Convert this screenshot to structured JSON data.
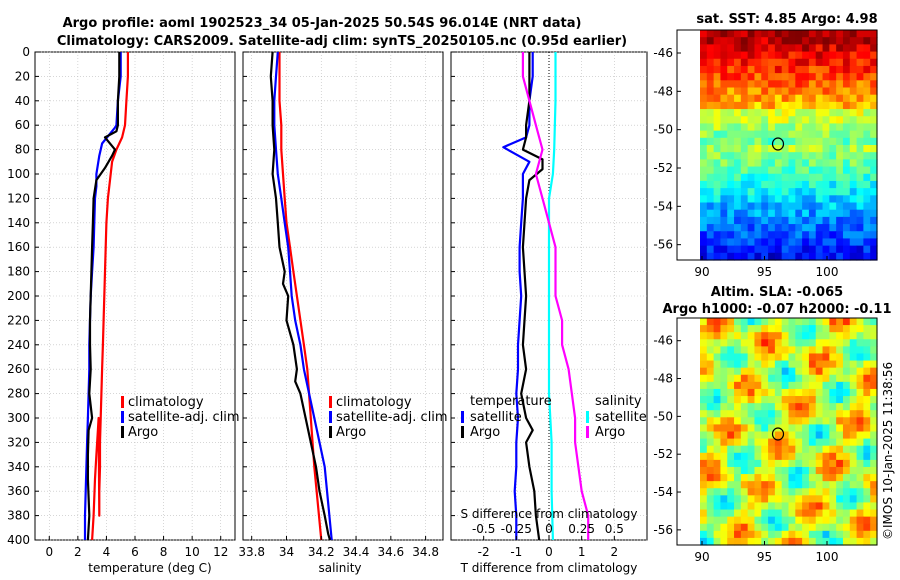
{
  "title": {
    "line1": "Argo profile: aoml 1902523_34 05-Jan-2025 50.54S 96.014E (NRT data)",
    "line2": "Climatology: CARS2009. Satellite-adj clim: synTS_20250105.nc (0.95d earlier)"
  },
  "credit": "©IMOS 10-Jan-2025 11:38:56",
  "colors": {
    "climatology": "#ff0000",
    "satellite": "#0000ff",
    "argo": "#000000",
    "sat_salinity": "#00ffff",
    "argo_salinity": "#ff00ff"
  },
  "chart_data": [
    {
      "id": "temperature",
      "type": "line",
      "xlabel": "temperature (deg C)",
      "ylabel": "",
      "xlim": [
        -1,
        13
      ],
      "ylim": [
        400,
        0
      ],
      "xticks": [
        "0",
        "2",
        "4",
        "6",
        "8",
        "10",
        "12"
      ],
      "yticks": [
        "0",
        "20",
        "40",
        "60",
        "80",
        "100",
        "120",
        "140",
        "160",
        "180",
        "200",
        "220",
        "240",
        "260",
        "280",
        "300",
        "320",
        "340",
        "360",
        "380",
        "400"
      ],
      "grid": true,
      "legend": {
        "location": "lower-right",
        "entries": [
          "climatology",
          "satellite-adj. clim",
          "Argo"
        ]
      },
      "series": [
        {
          "name": "climatology",
          "x": [
            5.5,
            5.5,
            5.4,
            5.3,
            5.1,
            4.7,
            4.4,
            4.3,
            4.2,
            4.1,
            4.0,
            3.95,
            3.9,
            3.85,
            3.8,
            3.75,
            3.7,
            3.65,
            3.6,
            3.55,
            3.55,
            3.5,
            3.5,
            3.45,
            3.4,
            3.3,
            3.2,
            3.1,
            3.0
          ],
          "y": [
            0,
            20,
            40,
            60,
            70,
            80,
            90,
            100,
            110,
            120,
            140,
            160,
            180,
            200,
            220,
            240,
            260,
            280,
            300,
            320,
            340,
            360,
            380,
            300,
            310,
            330,
            350,
            380,
            400
          ]
        },
        {
          "name": "satellite-adj. clim",
          "x": [
            5.0,
            5.0,
            4.8,
            4.7,
            4.6,
            3.7,
            3.5,
            3.3,
            3.3,
            3.2,
            3.15,
            3.1,
            3.0,
            2.9,
            2.85,
            2.8,
            2.8,
            2.75,
            2.7,
            2.65,
            2.6,
            2.55,
            2.5,
            2.5
          ],
          "y": [
            0,
            20,
            40,
            60,
            62,
            75,
            85,
            100,
            110,
            120,
            140,
            160,
            180,
            200,
            220,
            240,
            260,
            280,
            300,
            320,
            340,
            360,
            380,
            400
          ]
        },
        {
          "name": "Argo",
          "x": [
            4.9,
            4.9,
            4.8,
            4.8,
            4.7,
            3.9,
            4.6,
            4.4,
            3.9,
            3.3,
            3.1,
            3.05,
            3.0,
            2.95,
            2.9,
            2.85,
            2.85,
            2.9,
            2.8,
            2.9,
            3.0,
            2.75,
            2.7,
            2.7,
            2.8,
            2.7
          ],
          "y": [
            0,
            20,
            40,
            60,
            65,
            70,
            80,
            85,
            95,
            105,
            120,
            140,
            160,
            180,
            200,
            220,
            240,
            260,
            280,
            290,
            300,
            310,
            330,
            350,
            380,
            400
          ]
        }
      ]
    },
    {
      "id": "salinity",
      "type": "line",
      "xlabel": "salinity",
      "xlim": [
        33.75,
        34.9
      ],
      "ylim": [
        400,
        0
      ],
      "xticks": [
        "33.8",
        "34",
        "34.2",
        "34.4",
        "34.6",
        "34.8"
      ],
      "grid": true,
      "legend": {
        "location": "lower-right",
        "entries": [
          "climatology",
          "satellite-adj. clim",
          "Argo"
        ]
      },
      "series": [
        {
          "name": "climatology",
          "x": [
            33.96,
            33.96,
            33.96,
            33.97,
            33.97,
            33.98,
            33.99,
            34.0,
            34.02,
            34.04,
            34.06,
            34.08,
            34.1,
            34.12,
            34.14,
            34.16,
            34.18,
            34.2
          ],
          "y": [
            0,
            20,
            40,
            60,
            80,
            100,
            120,
            140,
            160,
            180,
            200,
            220,
            240,
            260,
            300,
            340,
            370,
            400
          ]
        },
        {
          "name": "satellite-adj. clim",
          "x": [
            33.95,
            33.94,
            33.93,
            33.93,
            33.94,
            33.95,
            33.97,
            33.99,
            34.01,
            34.02,
            34.03,
            34.05,
            34.08,
            34.1,
            34.13,
            34.16,
            34.19,
            34.22,
            34.24,
            34.26
          ],
          "y": [
            0,
            20,
            40,
            60,
            80,
            100,
            120,
            140,
            160,
            180,
            200,
            220,
            240,
            260,
            280,
            300,
            320,
            340,
            370,
            400
          ]
        },
        {
          "name": "Argo",
          "x": [
            33.92,
            33.91,
            33.92,
            33.92,
            33.93,
            33.92,
            33.94,
            33.95,
            33.96,
            33.99,
            33.98,
            34.01,
            34.0,
            34.04,
            34.06,
            34.05,
            34.08,
            34.11,
            34.14,
            34.17,
            34.19,
            34.22,
            34.24,
            34.25
          ],
          "y": [
            0,
            20,
            40,
            60,
            80,
            100,
            120,
            140,
            160,
            180,
            190,
            200,
            220,
            240,
            260,
            270,
            280,
            300,
            320,
            340,
            360,
            380,
            395,
            400
          ]
        }
      ]
    },
    {
      "id": "difference",
      "type": "line",
      "xlabel": "T difference from climatology",
      "x2label": "S difference from climatology",
      "xlim": [
        -3,
        3
      ],
      "ylim": [
        400,
        0
      ],
      "xticks": [
        "-2",
        "-1",
        "0",
        "1",
        "2"
      ],
      "x2ticks": [
        "-0.5",
        "-0.25",
        "0",
        "0.25",
        "0.5"
      ],
      "grid": true,
      "legend": {
        "title_temperature": "temperature",
        "title_salinity": "salinity",
        "entries_temperature": [
          "satellite",
          "Argo"
        ],
        "entries_salinity": [
          "satellite",
          "Argo"
        ]
      },
      "series": [
        {
          "name": "temperature satellite",
          "x": [
            -0.5,
            -0.5,
            -0.6,
            -0.6,
            -0.7,
            -1.4,
            -0.6,
            -0.8,
            -0.8,
            -0.85,
            -0.9,
            -0.9,
            -0.85,
            -0.9,
            -0.95,
            -0.95,
            -1.0,
            -0.95,
            -1.0,
            -1.0,
            -1.05,
            -1.0,
            -1.0
          ],
          "y": [
            0,
            20,
            40,
            60,
            70,
            78,
            90,
            100,
            120,
            140,
            160,
            180,
            200,
            220,
            240,
            260,
            280,
            300,
            320,
            340,
            360,
            380,
            400
          ]
        },
        {
          "name": "temperature Argo",
          "x": [
            -0.6,
            -0.6,
            -0.6,
            -0.7,
            -0.7,
            -0.8,
            -0.2,
            -0.2,
            -0.6,
            -0.7,
            -0.75,
            -0.8,
            -0.75,
            -0.7,
            -0.75,
            -0.8,
            -0.7,
            -0.85,
            -0.7,
            -0.5,
            -0.7,
            -0.6,
            -0.45,
            -0.4,
            -0.3
          ],
          "y": [
            0,
            20,
            40,
            60,
            70,
            80,
            88,
            96,
            105,
            120,
            140,
            160,
            180,
            200,
            220,
            240,
            260,
            280,
            300,
            310,
            320,
            340,
            360,
            380,
            400
          ]
        },
        {
          "name": "salinity satellite",
          "x": [
            0.05,
            0.05,
            0.05,
            0.04,
            0.03,
            0.0,
            0.0,
            0.0,
            0.0,
            0.0,
            0.02,
            0.02,
            0.03
          ],
          "y": [
            0,
            20,
            40,
            80,
            100,
            120,
            160,
            200,
            240,
            280,
            320,
            360,
            400
          ]
        },
        {
          "name": "salinity Argo",
          "x": [
            -0.2,
            -0.2,
            -0.15,
            -0.1,
            -0.05,
            -0.1,
            -0.05,
            0.0,
            0.05,
            0.05,
            0.1,
            0.1,
            0.15,
            0.2,
            0.2,
            0.25,
            0.3,
            0.3
          ],
          "y": [
            0,
            20,
            40,
            60,
            80,
            100,
            120,
            140,
            160,
            200,
            220,
            240,
            260,
            300,
            320,
            360,
            380,
            400
          ]
        }
      ]
    },
    {
      "id": "sst_map",
      "type": "heatmap",
      "title": "sat. SST: 4.85 Argo: 4.98",
      "xlim": [
        88,
        104
      ],
      "ylim": [
        -56.8,
        -44.8
      ],
      "xticks": [
        "90",
        "95",
        "100"
      ],
      "yticks": [
        "-46",
        "-48",
        "-50",
        "-52",
        "-54",
        "-56"
      ],
      "marker": {
        "lon": 96.0,
        "lat": -50.54
      }
    },
    {
      "id": "sla_map",
      "type": "heatmap",
      "title_line1": "Altim. SLA: -0.065",
      "title_line2": "Argo h1000: -0.07 h2000: -0.11",
      "xlim": [
        88,
        104
      ],
      "ylim": [
        -56.8,
        -44.8
      ],
      "xticks": [
        "90",
        "95",
        "100"
      ],
      "yticks": [
        "-46",
        "-48",
        "-50",
        "-52",
        "-54",
        "-56"
      ],
      "marker": {
        "lon": 96.0,
        "lat": -50.54
      }
    }
  ]
}
